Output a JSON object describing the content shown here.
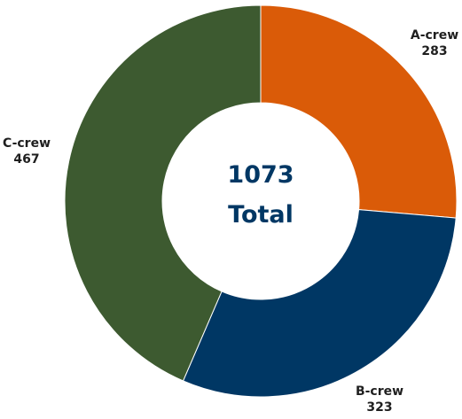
{
  "chart_data": {
    "type": "pie",
    "variant": "donut",
    "categories": [
      "A-crew",
      "B-crew",
      "C-crew"
    ],
    "values": [
      283,
      323,
      467
    ],
    "colors": [
      "#DA5B08",
      "#003764",
      "#3D5A30"
    ],
    "center": {
      "value": "1073",
      "label": "Total",
      "color": "#003764"
    },
    "title": "",
    "legend": "none"
  }
}
